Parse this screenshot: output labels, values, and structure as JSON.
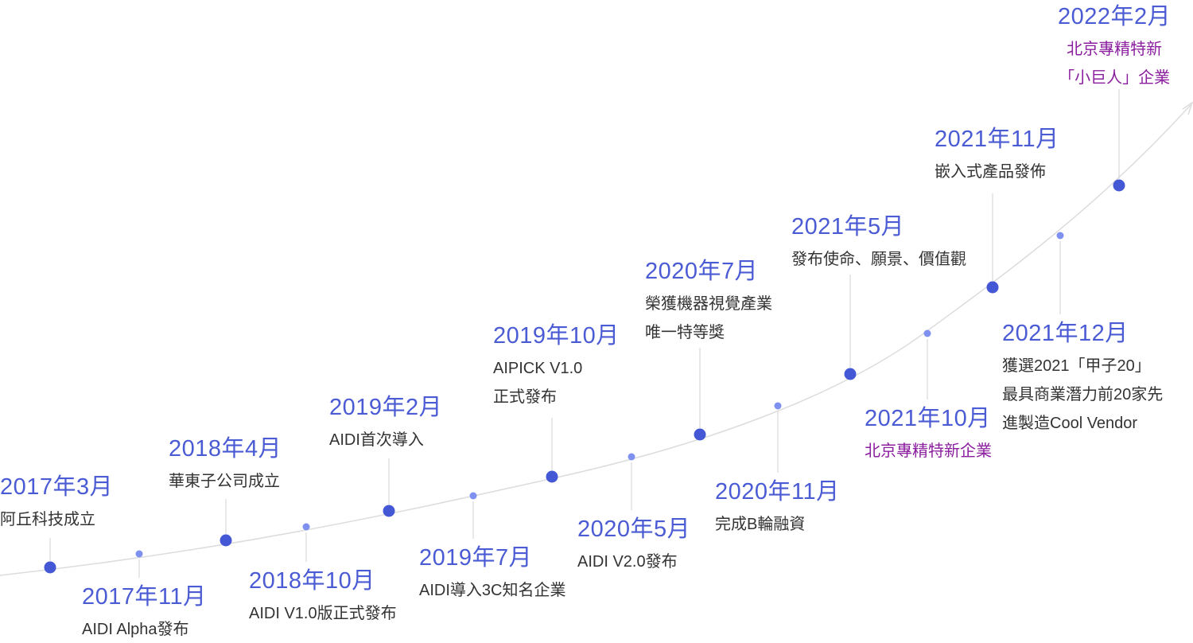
{
  "colors": {
    "date": "#4a5bd4",
    "text": "#333333",
    "highlight": "#8b1e9f",
    "node_major": "#4458d6",
    "node_minor": "#7e90f0",
    "curve": "#dcdcdc",
    "stem": "#d8d8d8"
  },
  "events": [
    {
      "id": "2017-03",
      "date": "2017年3月",
      "lines": [
        "阿丘科技成立"
      ],
      "highlight": false
    },
    {
      "id": "2017-11",
      "date": "2017年11月",
      "lines": [
        "AIDI Alpha發布"
      ],
      "highlight": false
    },
    {
      "id": "2018-04",
      "date": "2018年4月",
      "lines": [
        "華東子公司成立"
      ],
      "highlight": false
    },
    {
      "id": "2018-10",
      "date": "2018年10月",
      "lines": [
        "AIDI V1.0版正式發布"
      ],
      "highlight": false
    },
    {
      "id": "2019-02",
      "date": "2019年2月",
      "lines": [
        "AIDI首次導入"
      ],
      "highlight": false
    },
    {
      "id": "2019-07",
      "date": "2019年7月",
      "lines": [
        "AIDI導入3C知名企業"
      ],
      "highlight": false
    },
    {
      "id": "2019-10",
      "date": "2019年10月",
      "lines": [
        "AIPICK V1.0",
        "正式發布"
      ],
      "highlight": false
    },
    {
      "id": "2020-05",
      "date": "2020年5月",
      "lines": [
        "AIDI V2.0發布"
      ],
      "highlight": false
    },
    {
      "id": "2020-07",
      "date": "2020年7月",
      "lines": [
        "榮獲機器視覺產業",
        "唯一特等獎"
      ],
      "highlight": false
    },
    {
      "id": "2020-11",
      "date": "2020年11月",
      "lines": [
        "完成B輪融資"
      ],
      "highlight": false
    },
    {
      "id": "2021-05",
      "date": "2021年5月",
      "lines": [
        "發布使命、願景、價值觀"
      ],
      "highlight": false
    },
    {
      "id": "2021-10",
      "date": "2021年10月",
      "lines": [
        "北京專精特新企業"
      ],
      "highlight": true
    },
    {
      "id": "2021-11",
      "date": "2021年11月",
      "lines": [
        "嵌入式產品發佈"
      ],
      "highlight": false
    },
    {
      "id": "2021-12",
      "date": "2021年12月",
      "lines": [
        "獲選2021「甲子20」",
        "最具商業潛力前20家先",
        "進製造Cool Vendor"
      ],
      "highlight": false
    },
    {
      "id": "2022-02",
      "date": "2022年2月",
      "lines": [
        "北京專精特新",
        "「小巨人」企業"
      ],
      "highlight": true
    }
  ]
}
